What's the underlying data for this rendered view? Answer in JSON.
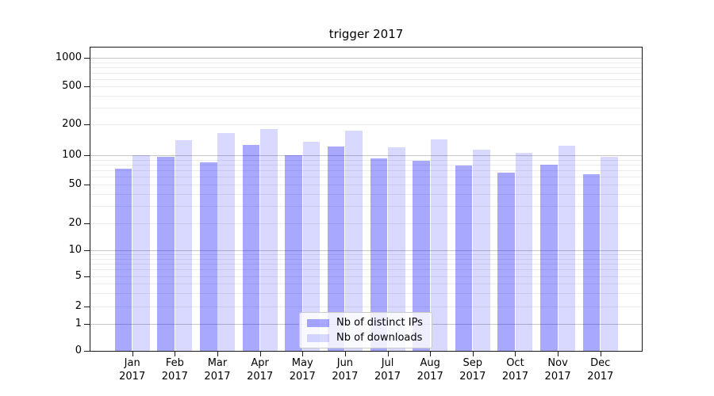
{
  "chart_data": {
    "type": "bar",
    "title": "trigger 2017",
    "scale": "symlog",
    "grid": true,
    "legend_position": "lower center",
    "categories": [
      "Jan",
      "Feb",
      "Mar",
      "Apr",
      "May",
      "Jun",
      "Jul",
      "Aug",
      "Sep",
      "Oct",
      "Nov",
      "Dec"
    ],
    "category_year": "2017",
    "y_ticks": [
      0,
      1,
      2,
      5,
      10,
      20,
      50,
      100,
      200,
      500,
      1000
    ],
    "ylim": [
      0,
      1280
    ],
    "series": [
      {
        "name": "Nb of distinct IPs",
        "color": "#0000ff",
        "opacity": 0.34,
        "values": [
          73,
          96,
          84,
          125,
          100,
          121,
          93,
          88,
          79,
          67,
          80,
          64
        ]
      },
      {
        "name": "Nb of downloads",
        "color": "#0000ff",
        "opacity": 0.15,
        "values": [
          100,
          140,
          163,
          180,
          134,
          173,
          119,
          142,
          113,
          106,
          123,
          97
        ]
      }
    ]
  },
  "colors": {
    "background": "#ffffff",
    "spine": "#1a1a1a",
    "grid_major": "#c6c6c6",
    "grid_minor": "#ebebeb",
    "bar_dark_rendered": "#a8a8f8",
    "bar_light_rendered": "#dcdcfa",
    "legend_border": "#cbcbcb"
  }
}
